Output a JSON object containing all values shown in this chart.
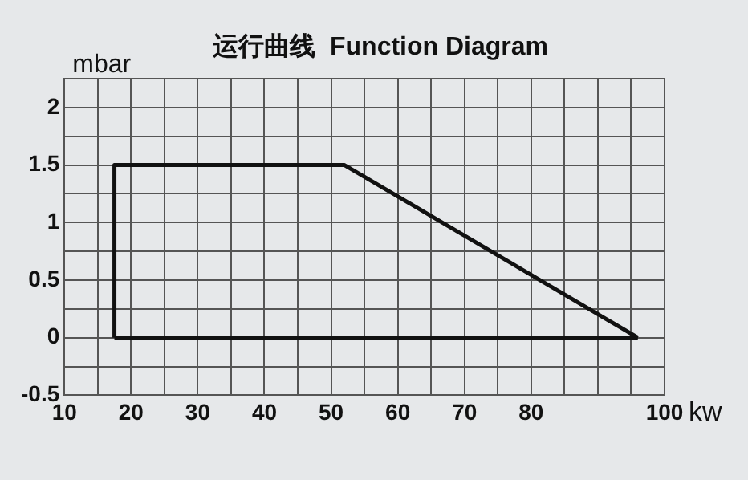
{
  "chart_data": {
    "type": "line",
    "title": "运行曲线  Function Diagram",
    "xlabel": "kw",
    "ylabel": "mbar",
    "series": [
      {
        "color": "#111111",
        "x": [
          17.5,
          17.5,
          52,
          96
        ],
        "values": [
          0,
          1.5,
          1.5,
          0
        ]
      },
      {
        "color": "#111111",
        "x": [
          17.5,
          96
        ],
        "values": [
          0,
          0
        ]
      }
    ],
    "xlim": [
      10,
      100
    ],
    "xticks": [
      10,
      {
        "value": 15,
        "label": null
      },
      20,
      {
        "value": 25,
        "label": null
      },
      30,
      {
        "value": 35,
        "label": null
      },
      40,
      {
        "value": 45,
        "label": null
      },
      50,
      {
        "value": 55,
        "label": null
      },
      60,
      {
        "value": 65,
        "label": null
      },
      70,
      {
        "value": 75,
        "label": null
      },
      80,
      {
        "value": 85,
        "label": null
      },
      {
        "value": 90,
        "label": null
      },
      {
        "value": 95,
        "label": null
      },
      100
    ],
    "ylim": [
      -0.5,
      2.25
    ],
    "yticks": [
      -0.5,
      {
        "value": -0.25,
        "label": null
      },
      0,
      {
        "value": 0.25,
        "label": null
      },
      0.5,
      {
        "value": 0.75,
        "label": null
      },
      1,
      {
        "value": 1.25,
        "label": null
      },
      1.5,
      {
        "value": 1.75,
        "label": null
      },
      2,
      {
        "value": 2.25,
        "label": null
      }
    ],
    "grid": true,
    "legend": false,
    "marker": "none",
    "line_style": "solid"
  }
}
